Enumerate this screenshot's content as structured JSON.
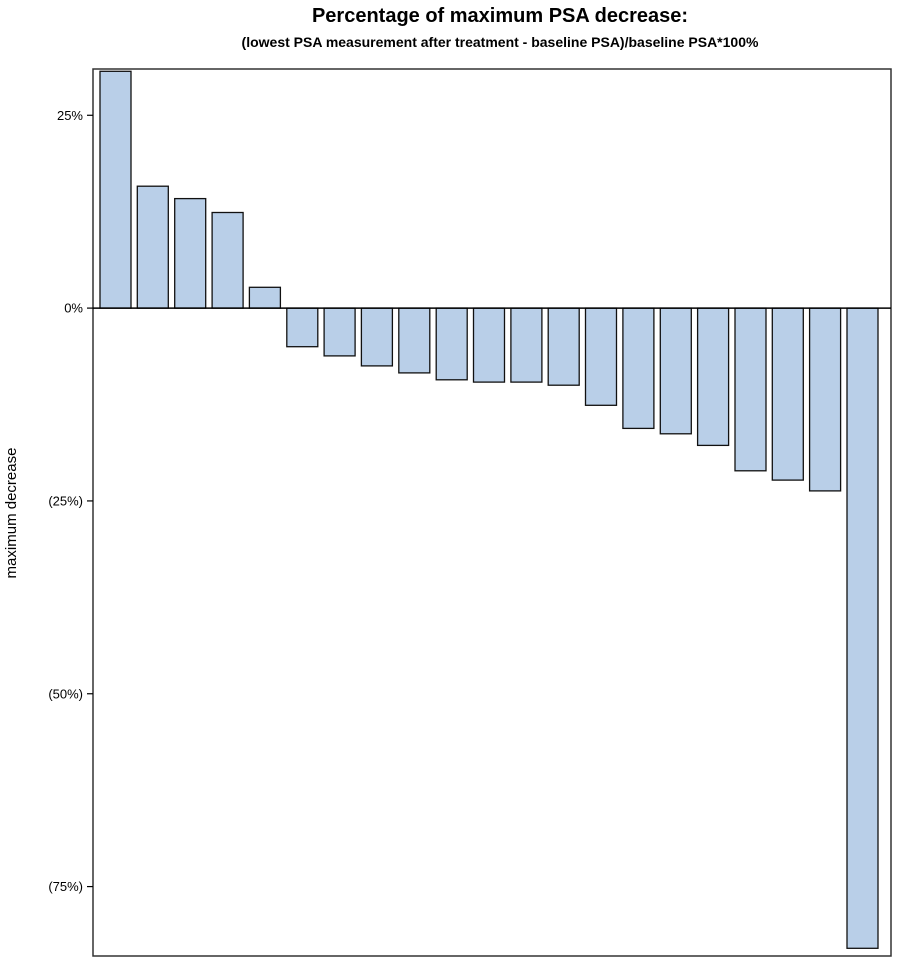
{
  "chart_data": {
    "type": "bar",
    "title": "Percentage of maximum PSA decrease:",
    "subtitle": "(lowest PSA measurement after treatment - baseline PSA)/baseline PSA*100%",
    "xlabel": "",
    "ylabel": "maximum decrease",
    "ylim": [
      -84,
      31
    ],
    "yticks": [
      {
        "value": 25,
        "label": "25%"
      },
      {
        "value": 0,
        "label": "0%"
      },
      {
        "value": -25,
        "label": "(25%)"
      },
      {
        "value": -50,
        "label": "(50%)"
      },
      {
        "value": -75,
        "label": "(75%)"
      }
    ],
    "grid": false,
    "legend": "none",
    "bar_color": "#b9cfe8",
    "values": [
      30.7,
      15.8,
      14.2,
      12.4,
      2.7,
      -5.0,
      -6.2,
      -7.5,
      -8.4,
      -9.3,
      -9.6,
      -9.6,
      -10.0,
      -12.6,
      -15.6,
      -16.3,
      -17.8,
      -21.1,
      -22.3,
      -23.7,
      -83.0
    ]
  }
}
